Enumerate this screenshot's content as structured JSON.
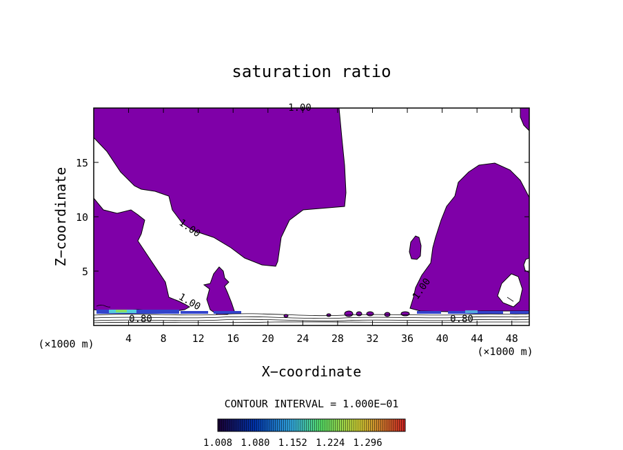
{
  "chart_data": {
    "type": "heatmap",
    "title": "saturation ratio",
    "xlabel": "X−coordinate",
    "ylabel": "Z−coordinate",
    "x_unit_left": "(×1000 m)",
    "x_unit_right": "(×1000 m)",
    "xlim": [
      0,
      50
    ],
    "ylim": [
      0,
      20
    ],
    "xticks": [
      4,
      8,
      12,
      16,
      20,
      24,
      28,
      32,
      36,
      40,
      44,
      48
    ],
    "yticks": [
      5,
      10,
      15
    ],
    "contour_interval_text": "CONTOUR INTERVAL = 1.000E−01",
    "contour_labels": [
      "1.00",
      "1.00",
      "1.00",
      "1.00",
      "0.80",
      "0.80"
    ],
    "colorbar": {
      "tick_labels": [
        "1.008",
        "1.080",
        "1.152",
        "1.224",
        "1.296"
      ],
      "levels": [
        1.008,
        1.08,
        1.152,
        1.224,
        1.296
      ],
      "colors": [
        "#1a0033",
        "#0044cc",
        "#33aadd",
        "#55dd55",
        "#dddd33",
        "#cc3322"
      ]
    },
    "fill_color": "#7f00a8"
  }
}
